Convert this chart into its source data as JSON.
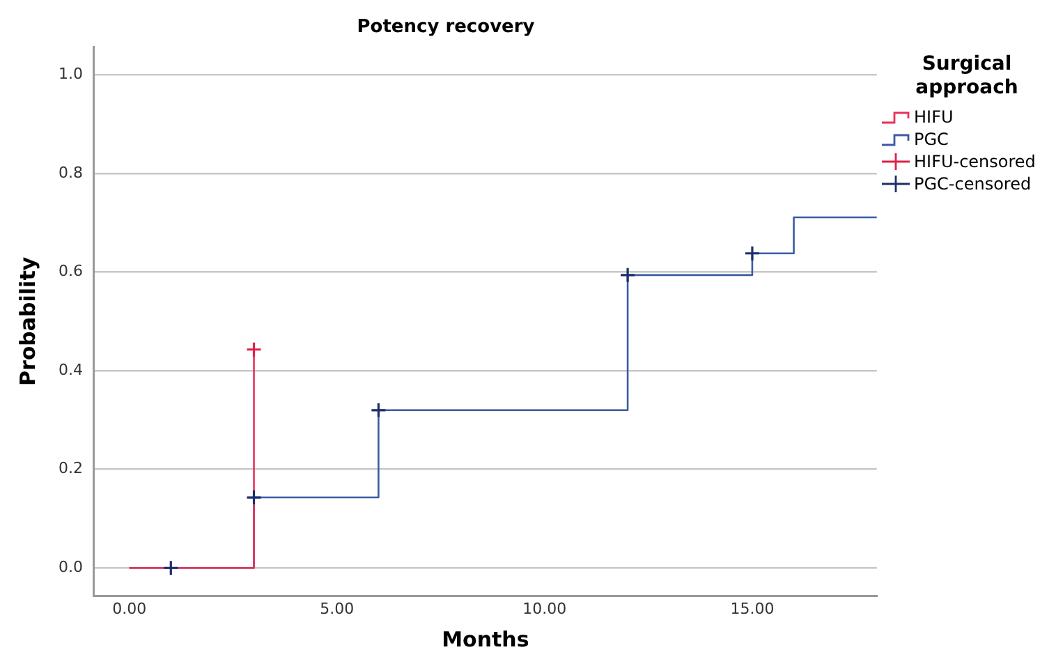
{
  "chart_data": {
    "type": "step",
    "title": "Potency recovery",
    "xlabel": "Months",
    "ylabel": "Probability",
    "legend_title": "Surgical approach",
    "legend": "top right",
    "xlim": [
      -0.85,
      18
    ],
    "ylim": [
      -0.057,
      1.057
    ],
    "xticks": [
      {
        "value": 0,
        "label": "0.00"
      },
      {
        "value": 5,
        "label": "5.00"
      },
      {
        "value": 10,
        "label": "10.00"
      },
      {
        "value": 15,
        "label": "15.00"
      }
    ],
    "yticks": [
      {
        "value": 0,
        "label": "0.0"
      },
      {
        "value": 0.2,
        "label": "0.2"
      },
      {
        "value": 0.4,
        "label": "0.4"
      },
      {
        "value": 0.6,
        "label": "0.6"
      },
      {
        "value": 0.8,
        "label": "0.8"
      },
      {
        "value": 1,
        "label": "1.0"
      }
    ],
    "grid": "y",
    "series": [
      {
        "name": "HIFU",
        "color": "#e8325a",
        "x": [
          0,
          3,
          3
        ],
        "values": [
          0,
          0.143,
          0.443
        ]
      },
      {
        "name": "PGC",
        "color": "#3b5ba5",
        "x": [
          0,
          3,
          6,
          12,
          15,
          16,
          18
        ],
        "values": [
          0,
          0.143,
          0.32,
          0.594,
          0.638,
          0.711,
          0.711
        ]
      },
      {
        "name": "HIFU-censored",
        "type": "scatter",
        "marker": "cross",
        "color": "#e0204a",
        "x": [
          3
        ],
        "values": [
          0.443
        ]
      },
      {
        "name": "PGC-censored",
        "type": "scatter",
        "marker": "cross",
        "color": "#1c2f6b",
        "x": [
          1,
          3,
          6,
          12,
          15
        ],
        "values": [
          0,
          0.143,
          0.32,
          0.594,
          0.638
        ]
      }
    ]
  }
}
